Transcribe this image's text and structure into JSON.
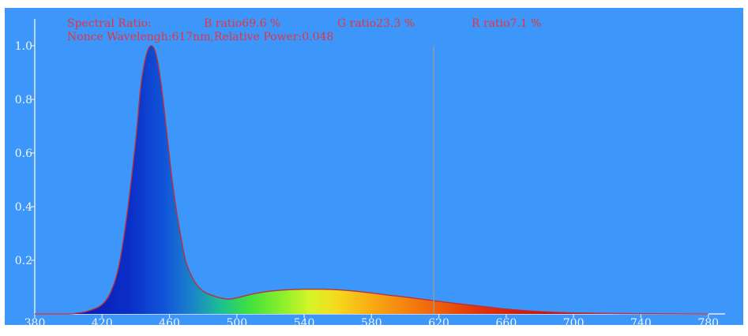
{
  "header": {
    "spectral_label": "Spectral Ratio:",
    "b_ratio": "B ratio69.6 %",
    "g_ratio": "G ratio23.3 %",
    "r_ratio": "R ratio7.1 %",
    "nonce": "Nonce Wavelengh:617nm,Relative Power:0.048"
  },
  "colors": {
    "background": "#3d97fb",
    "axis": "#e6eaf0",
    "curve": "#b8323a",
    "marker": "#9a9a9a"
  },
  "chart_data": {
    "type": "area",
    "title": "",
    "xlabel": "",
    "ylabel": "",
    "xlim": [
      380,
      790
    ],
    "ylim": [
      0,
      1.0
    ],
    "grid": false,
    "x_ticks": [
      380,
      420,
      460,
      500,
      540,
      580,
      620,
      660,
      700,
      740,
      780
    ],
    "x_tick_labels": [
      "380",
      "420",
      "460",
      "500",
      "540",
      "580",
      "620",
      "660",
      "700",
      "740",
      "780"
    ],
    "y_ticks": [
      0.2,
      0.4,
      0.6,
      0.8,
      1.0
    ],
    "y_tick_labels": [
      "0.2",
      "0.4",
      "0.6",
      "0.8",
      "1.0"
    ],
    "marker_wavelength": 617,
    "marker_power": 0.048,
    "series": [
      {
        "x": [
          380,
          400,
          405,
          410,
          415,
          420,
          425,
          430,
          435,
          440,
          443,
          446,
          449,
          452,
          455,
          458,
          461,
          464,
          467,
          470,
          475,
          480,
          485,
          490,
          495,
          500,
          510,
          520,
          530,
          540,
          550,
          560,
          570,
          580,
          590,
          600,
          610,
          620,
          630,
          640,
          650,
          660,
          670,
          680,
          690,
          700,
          710,
          720,
          730,
          740,
          750,
          760,
          770,
          780
        ],
        "values": [
          0,
          0,
          0.003,
          0.008,
          0.018,
          0.035,
          0.08,
          0.18,
          0.38,
          0.65,
          0.85,
          0.96,
          1.0,
          0.97,
          0.86,
          0.7,
          0.53,
          0.39,
          0.28,
          0.19,
          0.12,
          0.085,
          0.07,
          0.06,
          0.055,
          0.06,
          0.075,
          0.085,
          0.09,
          0.092,
          0.092,
          0.09,
          0.085,
          0.078,
          0.07,
          0.063,
          0.055,
          0.047,
          0.039,
          0.032,
          0.025,
          0.018,
          0.013,
          0.009,
          0.006,
          0.004,
          0.003,
          0.002,
          0.0015,
          0.001,
          0.0008,
          0.0005,
          0.0003,
          0
        ]
      }
    ]
  }
}
